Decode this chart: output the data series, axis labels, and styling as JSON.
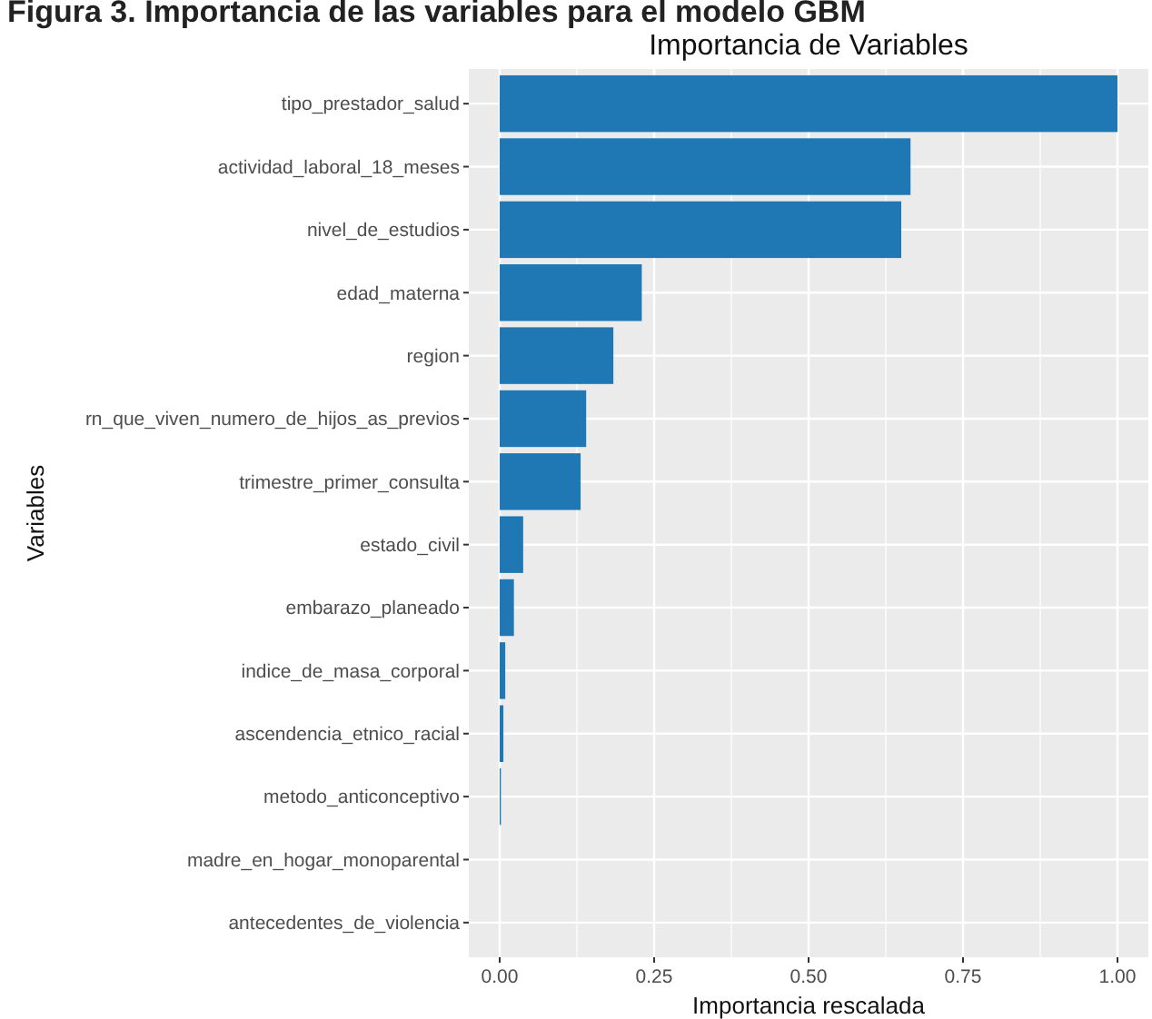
{
  "chart_data": {
    "type": "bar",
    "orientation": "horizontal",
    "title": "Importancia de Variables",
    "xlabel": "Importancia rescalada",
    "ylabel": "Variables",
    "annotations": [
      "Figura 3. Importancia de las variables para el modelo GBM"
    ],
    "categories": [
      "tipo_prestador_salud",
      "actividad_laboral_18_meses",
      "nivel_de_estudios",
      "edad_materna",
      "region",
      "rn_que_viven_numero_de_hijos_as_previos",
      "trimestre_primer_consulta",
      "estado_civil",
      "embarazo_planeado",
      "indice_de_masa_corporal",
      "ascendencia_etnico_racial",
      "metodo_anticonceptivo",
      "madre_en_hogar_monoparental",
      "antecedentes_de_violencia"
    ],
    "values": [
      1.0,
      0.665,
      0.65,
      0.23,
      0.184,
      0.14,
      0.131,
      0.038,
      0.023,
      0.009,
      0.006,
      0.002,
      0,
      0
    ],
    "color": "#1f78b4",
    "xlim": [
      -0.05,
      1.05
    ],
    "xticks": [
      {
        "value": 0,
        "label": "0.00"
      },
      {
        "value": 0.25,
        "label": "0.25"
      },
      {
        "value": 0.5,
        "label": "0.50"
      },
      {
        "value": 0.75,
        "label": "0.75"
      },
      {
        "value": 1,
        "label": "1.00"
      }
    ],
    "grid": true
  }
}
